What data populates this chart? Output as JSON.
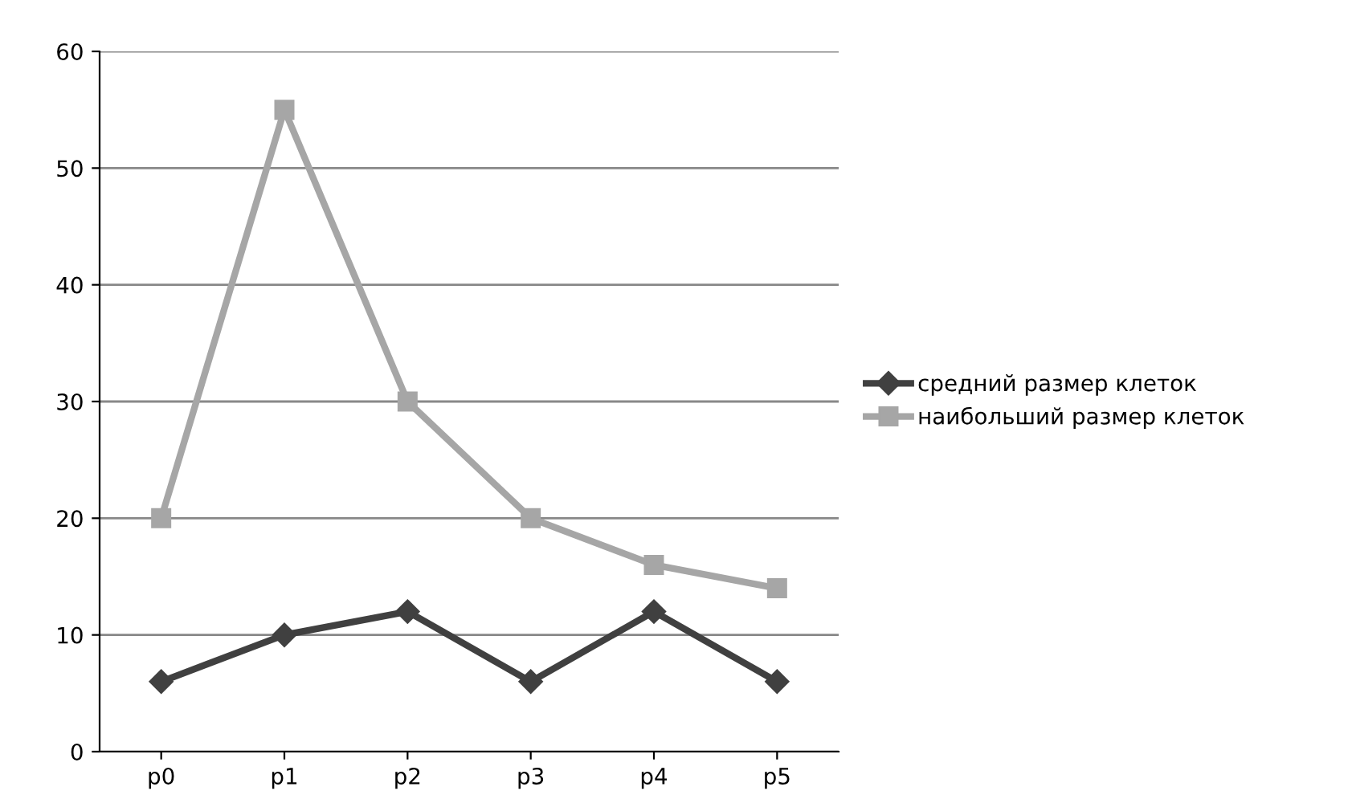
{
  "chart_data": {
    "type": "line",
    "categories": [
      "p0",
      "p1",
      "p2",
      "p3",
      "p4",
      "p5"
    ],
    "series": [
      {
        "name": "средний размер клеток",
        "color": "#404040",
        "values": [
          6,
          10,
          12,
          6,
          12,
          6
        ],
        "marker": "diamond"
      },
      {
        "name": "наибольший размер клеток",
        "color": "#a6a6a6",
        "values": [
          20,
          55,
          30,
          20,
          16,
          14
        ],
        "marker": "square"
      }
    ],
    "ylim": [
      0,
      60
    ],
    "yticks": [
      0,
      10,
      20,
      30,
      40,
      50,
      60
    ],
    "grid": "y",
    "legend": "right",
    "line_style": "solid"
  }
}
